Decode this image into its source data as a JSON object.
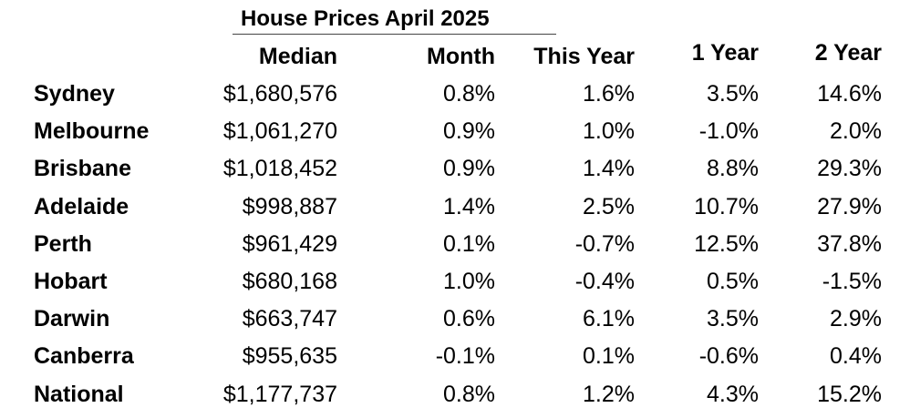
{
  "title": "House Prices April 2025",
  "headers": {
    "median": "Median",
    "month": "Month",
    "this_year": "This Year",
    "one_year": "1 Year",
    "two_year": "2 Year"
  },
  "rows": [
    {
      "city": "Sydney",
      "median": "$1,680,576",
      "month": "0.8%",
      "this_year": "1.6%",
      "one_year": "3.5%",
      "two_year": "14.6%"
    },
    {
      "city": "Melbourne",
      "median": "$1,061,270",
      "month": "0.9%",
      "this_year": "1.0%",
      "one_year": "-1.0%",
      "two_year": "2.0%"
    },
    {
      "city": "Brisbane",
      "median": "$1,018,452",
      "month": "0.9%",
      "this_year": "1.4%",
      "one_year": "8.8%",
      "two_year": "29.3%"
    },
    {
      "city": "Adelaide",
      "median": "$998,887",
      "month": "1.4%",
      "this_year": "2.5%",
      "one_year": "10.7%",
      "two_year": "27.9%"
    },
    {
      "city": "Perth",
      "median": "$961,429",
      "month": "0.1%",
      "this_year": "-0.7%",
      "one_year": "12.5%",
      "two_year": "37.8%"
    },
    {
      "city": "Hobart",
      "median": "$680,168",
      "month": "1.0%",
      "this_year": "-0.4%",
      "one_year": "0.5%",
      "two_year": "-1.5%"
    },
    {
      "city": "Darwin",
      "median": "$663,747",
      "month": "0.6%",
      "this_year": "6.1%",
      "one_year": "3.5%",
      "two_year": "2.9%"
    },
    {
      "city": "Canberra",
      "median": "$955,635",
      "month": "-0.1%",
      "this_year": "0.1%",
      "one_year": "-0.6%",
      "two_year": "0.4%"
    },
    {
      "city": "National",
      "median": "$1,177,737",
      "month": "0.8%",
      "this_year": "1.2%",
      "one_year": "4.3%",
      "two_year": "15.2%"
    }
  ]
}
